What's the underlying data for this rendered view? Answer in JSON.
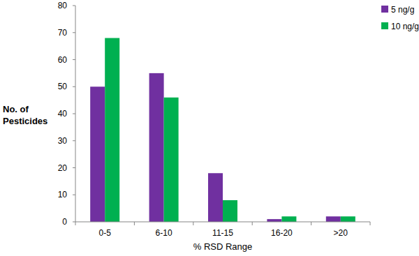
{
  "chart_data": {
    "type": "bar",
    "x_label": "% RSD Range",
    "y_label": "No. of Pesticides",
    "categories": [
      "0-5",
      "6-10",
      "11-15",
      "16-20",
      ">20"
    ],
    "series": [
      {
        "name": "5 ng/g",
        "color": "#7030a0",
        "values": [
          50,
          55,
          18,
          1,
          2
        ]
      },
      {
        "name": "10 ng/g",
        "color": "#00b050",
        "values": [
          68,
          46,
          8,
          2,
          2
        ]
      }
    ],
    "ylim": [
      0,
      80
    ],
    "yticks": [
      0,
      10,
      20,
      30,
      40,
      50,
      60,
      70,
      80
    ],
    "grid": false,
    "legend": "top-right"
  }
}
